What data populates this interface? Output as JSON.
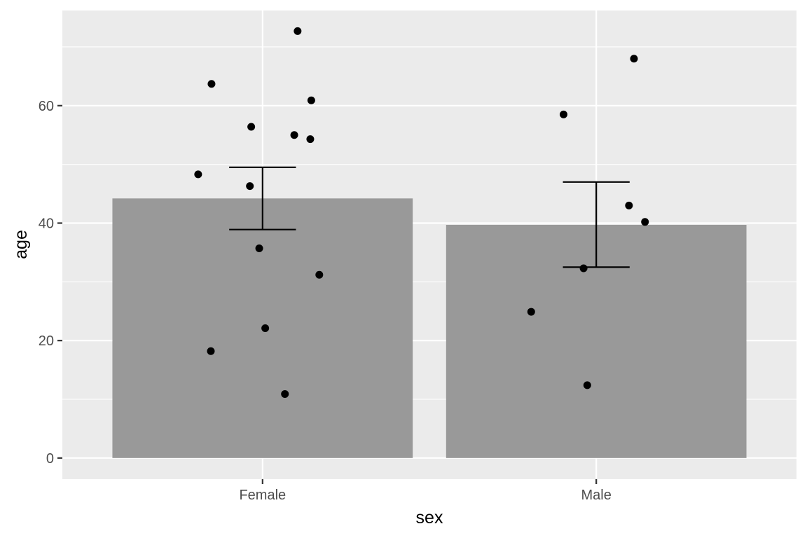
{
  "chart_data": {
    "type": "bar",
    "title": "",
    "xlabel": "sex",
    "ylabel": "age",
    "categories": [
      "Female",
      "Male"
    ],
    "values": [
      44.2,
      39.7
    ],
    "error_bars": [
      {
        "low": 38.9,
        "high": 49.5
      },
      {
        "low": 32.5,
        "high": 47.0
      }
    ],
    "points": [
      {
        "category": "Female",
        "jitter": 0.105,
        "value": 72.7
      },
      {
        "category": "Female",
        "jitter": -0.153,
        "value": 63.7
      },
      {
        "category": "Female",
        "jitter": 0.146,
        "value": 60.9
      },
      {
        "category": "Female",
        "jitter": -0.034,
        "value": 56.4
      },
      {
        "category": "Female",
        "jitter": 0.095,
        "value": 55.0
      },
      {
        "category": "Female",
        "jitter": 0.143,
        "value": 54.3
      },
      {
        "category": "Female",
        "jitter": -0.193,
        "value": 48.3
      },
      {
        "category": "Female",
        "jitter": -0.038,
        "value": 46.3
      },
      {
        "category": "Female",
        "jitter": -0.01,
        "value": 35.7
      },
      {
        "category": "Female",
        "jitter": 0.17,
        "value": 31.2
      },
      {
        "category": "Female",
        "jitter": 0.008,
        "value": 22.1
      },
      {
        "category": "Female",
        "jitter": -0.155,
        "value": 18.2
      },
      {
        "category": "Female",
        "jitter": 0.067,
        "value": 10.9
      },
      {
        "category": "Male",
        "jitter": 0.113,
        "value": 68.0
      },
      {
        "category": "Male",
        "jitter": -0.098,
        "value": 58.5
      },
      {
        "category": "Male",
        "jitter": 0.098,
        "value": 43.0
      },
      {
        "category": "Male",
        "jitter": 0.146,
        "value": 40.2
      },
      {
        "category": "Male",
        "jitter": -0.038,
        "value": 32.3
      },
      {
        "category": "Male",
        "jitter": -0.195,
        "value": 24.9
      },
      {
        "category": "Male",
        "jitter": -0.027,
        "value": 12.4
      }
    ],
    "y_ticks": [
      0,
      20,
      40,
      60
    ],
    "ylim": [
      -3.6,
      76.2
    ],
    "grid": true,
    "legend": "none",
    "colors": {
      "panel": "#ebebeb",
      "grid": "#ffffff",
      "bar": "#999999",
      "point": "#000000",
      "errorbar": "#000000",
      "tick": "#333333"
    }
  }
}
